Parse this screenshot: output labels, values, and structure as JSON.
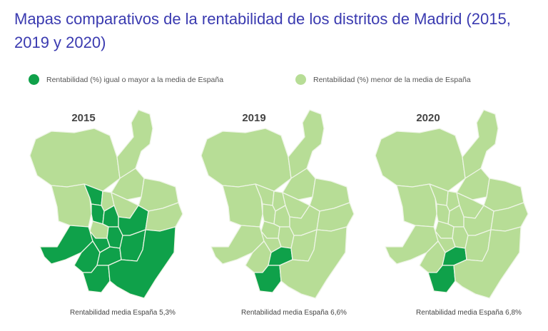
{
  "title": "Mapas comparativos de la rentabilidad de los distritos de Madrid  (2015, 2019 y 2020)",
  "legend": {
    "above": {
      "label": "Rentabilidad (%) igual o mayor a la media de España",
      "color": "#0fa14a"
    },
    "below": {
      "label": "Rentabilidad (%) menor de la media de España",
      "color": "#b7dd96"
    }
  },
  "maps": [
    {
      "year": "2015",
      "caption": "Rentabilidad media España 5,3%",
      "above_average_districts": [
        "usera",
        "villaverde",
        "carabanchel",
        "latina",
        "puente-vallecas",
        "villa-vallecas",
        "arganzuela",
        "retiro",
        "moratalaz",
        "salamanca",
        "tetuan",
        "chamberi"
      ]
    },
    {
      "year": "2019",
      "caption": "Rentabilidad media España 6,6%",
      "above_average_districts": [
        "usera",
        "villaverde"
      ]
    },
    {
      "year": "2020",
      "caption": "Rentabilidad media España 6,8%",
      "above_average_districts": [
        "usera",
        "villaverde"
      ]
    }
  ]
}
